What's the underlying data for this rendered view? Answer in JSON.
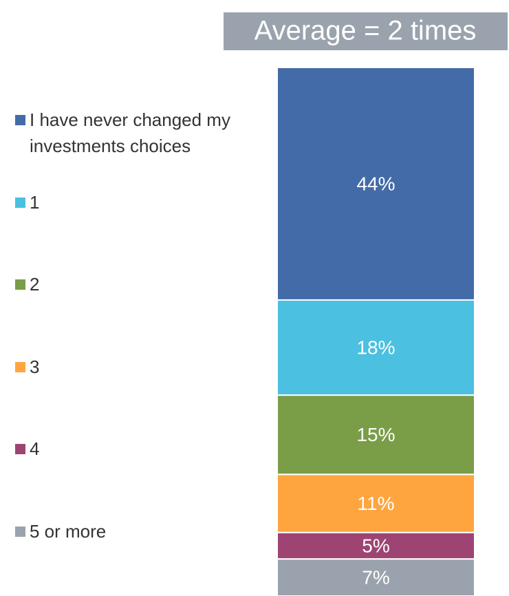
{
  "chart_data": {
    "type": "stacked-bar",
    "annotation": "Average = 2 times",
    "series": [
      {
        "name": "I have never changed my investments choices",
        "color": "#436ba8",
        "values": [
          44
        ],
        "value_labels": [
          "44%"
        ]
      },
      {
        "name": "1",
        "color": "#4bc0e0",
        "values": [
          18
        ],
        "value_labels": [
          "18%"
        ]
      },
      {
        "name": "2",
        "color": "#7a9d48",
        "values": [
          15
        ],
        "value_labels": [
          "15%"
        ]
      },
      {
        "name": "3",
        "color": "#ffa540",
        "values": [
          11
        ],
        "value_labels": [
          "11%"
        ]
      },
      {
        "name": "4",
        "color": "#9e4473",
        "values": [
          5
        ],
        "value_labels": [
          "5%"
        ]
      },
      {
        "name": "5 or more",
        "color": "#9aa3ad",
        "values": [
          7
        ],
        "value_labels": [
          "7%"
        ]
      }
    ],
    "annotation_color": "#9aa3ad"
  }
}
